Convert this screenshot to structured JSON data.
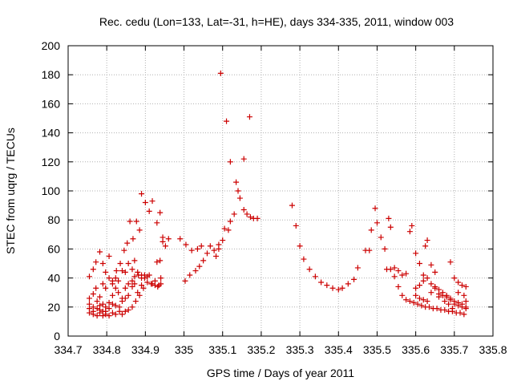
{
  "chart_data": {
    "type": "scatter",
    "title": "Rec. cedu (Lon=133, Lat=-31, h=HE), days 334-335, 2011, window 003",
    "xlabel": "GPS time / Days of year 2011",
    "ylabel": "STEC from uqrg / TECUs",
    "xlim": [
      334.7,
      335.8
    ],
    "ylim": [
      0,
      200
    ],
    "xticks": [
      334.7,
      334.8,
      334.9,
      335,
      335.1,
      335.2,
      335.3,
      335.4,
      335.5,
      335.6,
      335.7,
      335.8
    ],
    "xtick_labels": [
      "334.7",
      "334.8",
      "334.9",
      "335",
      "335.1",
      "335.2",
      "335.3",
      "335.4",
      "335.5",
      "335.6",
      "335.7",
      "335.8"
    ],
    "yticks": [
      0,
      20,
      40,
      60,
      80,
      100,
      120,
      140,
      160,
      180,
      200
    ],
    "ytick_labels": [
      "0",
      "20",
      "40",
      "60",
      "80",
      "100",
      "120",
      "140",
      "160",
      "180",
      "200"
    ],
    "grid": true,
    "marker": "+",
    "marker_color": "#cc0000",
    "series": [
      {
        "points": [
          [
            334.755,
            41
          ],
          [
            334.765,
            46
          ],
          [
            334.772,
            51
          ],
          [
            334.782,
            58
          ],
          [
            334.79,
            50
          ],
          [
            334.797,
            44
          ],
          [
            334.806,
            55
          ],
          [
            334.815,
            38
          ],
          [
            334.825,
            45
          ],
          [
            334.835,
            50
          ],
          [
            334.845,
            59
          ],
          [
            334.853,
            64
          ],
          [
            334.86,
            79
          ],
          [
            334.868,
            67
          ],
          [
            334.877,
            79
          ],
          [
            334.885,
            73
          ],
          [
            334.89,
            98
          ],
          [
            334.9,
            92
          ],
          [
            334.91,
            86
          ],
          [
            334.918,
            93
          ],
          [
            334.93,
            78
          ],
          [
            334.938,
            85
          ],
          [
            334.945,
            68
          ],
          [
            334.755,
            26
          ],
          [
            334.765,
            29
          ],
          [
            334.772,
            33
          ],
          [
            334.782,
            27
          ],
          [
            334.79,
            36
          ],
          [
            334.797,
            33
          ],
          [
            334.806,
            40
          ],
          [
            334.815,
            36
          ],
          [
            334.823,
            40
          ],
          [
            334.83,
            38
          ],
          [
            334.84,
            45
          ],
          [
            334.848,
            44
          ],
          [
            334.856,
            50
          ],
          [
            334.866,
            46
          ],
          [
            334.872,
            52
          ],
          [
            334.882,
            42
          ],
          [
            334.89,
            40
          ],
          [
            334.755,
            22
          ],
          [
            334.765,
            20
          ],
          [
            334.775,
            24
          ],
          [
            334.782,
            18
          ],
          [
            334.79,
            22
          ],
          [
            334.797,
            20
          ],
          [
            334.806,
            23
          ],
          [
            334.815,
            28
          ],
          [
            334.823,
            33
          ],
          [
            334.83,
            30
          ],
          [
            334.84,
            26
          ],
          [
            334.848,
            33
          ],
          [
            334.856,
            36
          ],
          [
            334.866,
            38
          ],
          [
            334.872,
            41
          ],
          [
            334.88,
            44
          ],
          [
            334.89,
            35
          ],
          [
            334.898,
            42
          ],
          [
            334.755,
            19
          ],
          [
            334.765,
            17
          ],
          [
            334.775,
            19
          ],
          [
            334.782,
            21
          ],
          [
            334.79,
            17
          ],
          [
            334.797,
            17
          ],
          [
            334.806,
            19
          ],
          [
            334.815,
            22
          ],
          [
            334.823,
            21
          ],
          [
            334.833,
            20
          ],
          [
            334.84,
            24
          ],
          [
            334.848,
            26
          ],
          [
            334.856,
            28
          ],
          [
            334.866,
            34
          ],
          [
            334.872,
            36
          ],
          [
            334.88,
            30
          ],
          [
            334.89,
            42
          ],
          [
            334.898,
            40
          ],
          [
            334.905,
            41
          ],
          [
            334.91,
            42
          ],
          [
            334.918,
            36
          ],
          [
            334.925,
            38
          ],
          [
            334.932,
            34
          ],
          [
            334.94,
            40
          ],
          [
            334.755,
            16
          ],
          [
            334.765,
            15
          ],
          [
            334.775,
            14
          ],
          [
            334.782,
            16
          ],
          [
            334.79,
            14
          ],
          [
            334.797,
            15
          ],
          [
            334.806,
            14
          ],
          [
            334.815,
            16
          ],
          [
            334.823,
            15
          ],
          [
            334.833,
            17
          ],
          [
            334.84,
            15
          ],
          [
            334.848,
            17
          ],
          [
            334.856,
            18
          ],
          [
            334.866,
            20
          ],
          [
            334.875,
            24
          ],
          [
            334.885,
            28
          ],
          [
            334.895,
            33
          ],
          [
            334.905,
            37
          ],
          [
            334.915,
            36
          ],
          [
            334.925,
            35
          ],
          [
            334.935,
            35
          ],
          [
            334.94,
            36
          ],
          [
            334.93,
            51
          ],
          [
            334.938,
            52
          ],
          [
            334.945,
            65
          ],
          [
            334.952,
            62
          ],
          [
            334.96,
            67
          ],
          [
            334.99,
            67
          ],
          [
            335.003,
            38
          ],
          [
            335.015,
            42
          ],
          [
            335.03,
            45
          ],
          [
            335.04,
            48
          ],
          [
            335.05,
            52
          ],
          [
            335.06,
            57
          ],
          [
            335.068,
            62
          ],
          [
            335.078,
            59
          ],
          [
            335.09,
            63
          ],
          [
            335.005,
            63
          ],
          [
            335.02,
            59
          ],
          [
            335.035,
            60
          ],
          [
            335.045,
            62
          ],
          [
            335.083,
            55
          ],
          [
            335.09,
            60
          ],
          [
            335.1,
            66
          ],
          [
            335.105,
            74
          ],
          [
            335.115,
            73
          ],
          [
            335.12,
            79
          ],
          [
            335.13,
            84
          ],
          [
            335.135,
            106
          ],
          [
            335.14,
            100
          ],
          [
            335.145,
            95
          ],
          [
            335.155,
            87
          ],
          [
            335.163,
            84
          ],
          [
            335.172,
            82
          ],
          [
            335.18,
            81
          ],
          [
            335.19,
            81
          ],
          [
            335.095,
            181
          ],
          [
            335.11,
            148
          ],
          [
            335.12,
            120
          ],
          [
            335.155,
            122
          ],
          [
            335.17,
            151
          ],
          [
            335.28,
            90
          ],
          [
            335.29,
            76
          ],
          [
            335.3,
            62
          ],
          [
            335.31,
            53
          ],
          [
            335.325,
            46
          ],
          [
            335.34,
            41
          ],
          [
            335.355,
            37
          ],
          [
            335.37,
            35
          ],
          [
            335.385,
            33
          ],
          [
            335.4,
            32
          ],
          [
            335.41,
            33
          ],
          [
            335.425,
            36
          ],
          [
            335.44,
            39
          ],
          [
            335.45,
            47
          ],
          [
            335.47,
            59
          ],
          [
            335.48,
            59
          ],
          [
            335.485,
            73
          ],
          [
            335.495,
            88
          ],
          [
            335.5,
            78
          ],
          [
            335.51,
            68
          ],
          [
            335.52,
            60
          ],
          [
            335.53,
            81
          ],
          [
            335.535,
            75
          ],
          [
            335.545,
            47
          ],
          [
            335.555,
            45
          ],
          [
            335.565,
            42
          ],
          [
            335.575,
            43
          ],
          [
            335.585,
            72
          ],
          [
            335.59,
            76
          ],
          [
            335.6,
            57
          ],
          [
            335.61,
            50
          ],
          [
            335.62,
            42
          ],
          [
            335.625,
            62
          ],
          [
            335.63,
            66
          ],
          [
            335.64,
            49
          ],
          [
            335.65,
            44
          ],
          [
            335.525,
            46
          ],
          [
            335.535,
            46
          ],
          [
            335.545,
            41
          ],
          [
            335.555,
            34
          ],
          [
            335.565,
            28
          ],
          [
            335.575,
            25
          ],
          [
            335.585,
            24
          ],
          [
            335.595,
            23
          ],
          [
            335.605,
            22
          ],
          [
            335.615,
            21
          ],
          [
            335.625,
            20
          ],
          [
            335.635,
            20
          ],
          [
            335.645,
            19
          ],
          [
            335.655,
            19
          ],
          [
            335.665,
            18
          ],
          [
            335.675,
            18
          ],
          [
            335.685,
            17
          ],
          [
            335.695,
            17
          ],
          [
            335.705,
            16
          ],
          [
            335.715,
            16
          ],
          [
            335.725,
            15
          ],
          [
            335.6,
            33
          ],
          [
            335.61,
            35
          ],
          [
            335.62,
            38
          ],
          [
            335.63,
            40
          ],
          [
            335.64,
            36
          ],
          [
            335.65,
            34
          ],
          [
            335.66,
            32
          ],
          [
            335.67,
            30
          ],
          [
            335.68,
            28
          ],
          [
            335.69,
            25
          ],
          [
            335.7,
            22
          ],
          [
            335.71,
            21
          ],
          [
            335.72,
            20
          ],
          [
            335.73,
            20
          ],
          [
            335.6,
            28
          ],
          [
            335.61,
            26
          ],
          [
            335.62,
            25
          ],
          [
            335.63,
            24
          ],
          [
            335.64,
            30
          ],
          [
            335.65,
            33
          ],
          [
            335.66,
            29
          ],
          [
            335.67,
            28
          ],
          [
            335.68,
            27
          ],
          [
            335.69,
            26
          ],
          [
            335.7,
            24
          ],
          [
            335.71,
            23
          ],
          [
            335.72,
            22
          ],
          [
            335.73,
            19
          ],
          [
            335.69,
            51
          ],
          [
            335.7,
            40
          ],
          [
            335.71,
            37
          ],
          [
            335.72,
            35
          ],
          [
            335.73,
            34
          ],
          [
            335.71,
            30
          ],
          [
            335.725,
            28
          ],
          [
            335.73,
            24
          ],
          [
            335.66,
            27
          ],
          [
            335.675,
            24
          ],
          [
            335.685,
            22
          ],
          [
            335.695,
            19
          ]
        ]
      }
    ]
  }
}
